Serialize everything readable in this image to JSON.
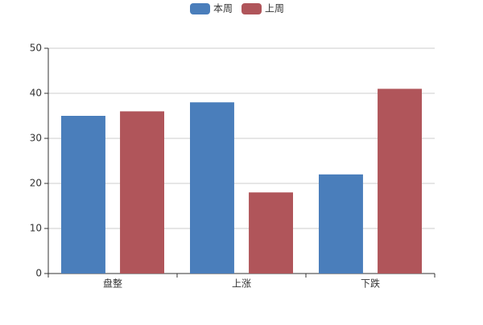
{
  "chart_data": {
    "type": "bar",
    "categories": [
      "盘整",
      "上涨",
      "下跌"
    ],
    "series": [
      {
        "name": "本周",
        "color": "#4a7ebb",
        "values": [
          35,
          38,
          22
        ]
      },
      {
        "name": "上周",
        "color": "#b0555a",
        "values": [
          36,
          18,
          41
        ]
      }
    ],
    "ylim": [
      0,
      50
    ],
    "yticks": [
      0,
      10,
      20,
      30,
      40,
      50
    ],
    "grid": true,
    "legend": "top"
  }
}
